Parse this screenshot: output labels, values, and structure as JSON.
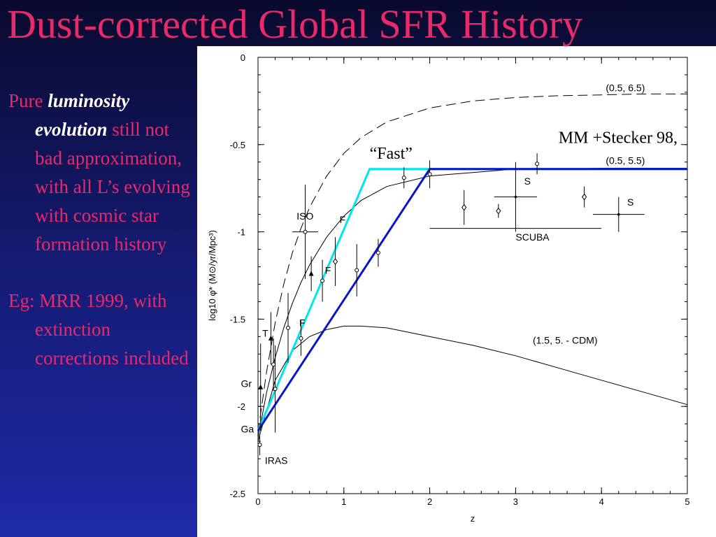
{
  "slide": {
    "title": "Dust-corrected Global SFR History",
    "bullets": [
      {
        "pre": "Pure ",
        "emph": "luminosity evolution",
        "post": " still not bad approximation, with all L’s evolving with cosmic star formation history"
      },
      {
        "pre": "Eg: MRR 1999, with extinction corrections included",
        "emph": "",
        "post": ""
      }
    ]
  },
  "colors": {
    "title": "#e8296a",
    "fast_model": "#00e5ee",
    "slow_model": "#0a14c8",
    "annotation": "#1414c8"
  },
  "chart_data": {
    "type": "line",
    "xlabel": "z",
    "ylabel": "log10 φ̇* (M⊙/yr/Mpc³)",
    "xlim": [
      0,
      5
    ],
    "ylim": [
      -2.5,
      0
    ],
    "xticks": [
      "0",
      "1",
      "2",
      "3",
      "4",
      "5"
    ],
    "yticks": [
      "0",
      "-0.5",
      "-1",
      "-1.5",
      "-2",
      "-2.5"
    ],
    "series": [
      {
        "name": "(0.5, 6.5)",
        "style": "dashed",
        "x": [
          0,
          0.1,
          0.2,
          0.3,
          0.4,
          0.5,
          0.6,
          0.8,
          1.0,
          1.2,
          1.5,
          2.0,
          2.5,
          3.0,
          3.5,
          4.0,
          4.5,
          5.0
        ],
        "y": [
          -2.15,
          -1.8,
          -1.52,
          -1.3,
          -1.12,
          -0.98,
          -0.86,
          -0.68,
          -0.55,
          -0.46,
          -0.37,
          -0.29,
          -0.25,
          -0.23,
          -0.22,
          -0.215,
          -0.21,
          -0.21
        ]
      },
      {
        "name": "(0.5, 5.5)",
        "style": "solid",
        "x": [
          0,
          0.1,
          0.2,
          0.3,
          0.4,
          0.5,
          0.6,
          0.8,
          1.0,
          1.2,
          1.5,
          2.0,
          2.5,
          3.0,
          3.5,
          4.0,
          4.5,
          5.0
        ],
        "y": [
          -2.18,
          -1.92,
          -1.72,
          -1.55,
          -1.41,
          -1.29,
          -1.19,
          -1.03,
          -0.91,
          -0.82,
          -0.74,
          -0.68,
          -0.66,
          -0.64,
          -0.64,
          -0.635,
          -0.635,
          -0.635
        ]
      },
      {
        "name": "(1.5, 5. - CDM)",
        "style": "solid",
        "x": [
          0,
          0.2,
          0.4,
          0.6,
          0.8,
          1.0,
          1.2,
          1.5,
          2.0,
          2.5,
          3.0,
          3.5,
          4.0,
          4.5,
          5.0
        ],
        "y": [
          -2.2,
          -1.85,
          -1.68,
          -1.6,
          -1.56,
          -1.54,
          -1.54,
          -1.55,
          -1.6,
          -1.65,
          -1.71,
          -1.78,
          -1.85,
          -1.92,
          -1.99
        ]
      },
      {
        "name": "“Fast”",
        "style": "solid",
        "color": "#00e5ee",
        "x": [
          0,
          1.3,
          5.0
        ],
        "y": [
          -2.14,
          -0.64,
          -0.64
        ]
      },
      {
        "name": "MM +Stecker 98,",
        "style": "solid",
        "color": "#0a14c8",
        "x": [
          0,
          2.0,
          5.0
        ],
        "y": [
          -2.14,
          -0.64,
          -0.64
        ]
      }
    ],
    "points": [
      {
        "x": 0.02,
        "y": -2.22,
        "marker": "circle",
        "yerr": 0.06
      },
      {
        "x": 0.03,
        "y": -1.89,
        "marker": "triangle",
        "yerr": 0.25
      },
      {
        "x": 0.15,
        "y": -1.61,
        "marker": "triangle",
        "yerr": 0.15
      },
      {
        "x": 0.18,
        "y": -1.76,
        "marker": "circle",
        "yerr": 0.15
      },
      {
        "x": 0.2,
        "y": -1.9,
        "marker": "circle",
        "yerr": 0.25
      },
      {
        "x": 0.35,
        "y": -1.55,
        "marker": "circle",
        "yerr": 0.2
      },
      {
        "x": 0.5,
        "y": -1.61,
        "marker": "circle",
        "yerr": 0.1
      },
      {
        "x": 0.55,
        "y": -1.0,
        "marker": "circle",
        "xerr": 0.15,
        "yerr": 0.27
      },
      {
        "x": 0.62,
        "y": -1.24,
        "marker": "triangle",
        "yerr": 0.1
      },
      {
        "x": 0.75,
        "y": -1.28,
        "marker": "circle",
        "yerr": 0.12
      },
      {
        "x": 0.9,
        "y": -1.17,
        "marker": "diamond",
        "yerr": 0.14
      },
      {
        "x": 1.15,
        "y": -1.22,
        "marker": "circle",
        "yerr": 0.15
      },
      {
        "x": 1.4,
        "y": -1.12,
        "marker": "circle",
        "yerr": 0.08
      },
      {
        "x": 1.7,
        "y": -0.69,
        "marker": "circle",
        "yerr": 0.06
      },
      {
        "x": 2.0,
        "y": -0.67,
        "marker": "circle",
        "yerr": 0.08
      },
      {
        "x": 2.4,
        "y": -0.86,
        "marker": "diamond",
        "yerr": 0.1
      },
      {
        "x": 2.8,
        "y": -0.88,
        "marker": "diamond",
        "yerr": 0.04
      },
      {
        "x": 3.0,
        "y": -0.8,
        "marker": "cross",
        "xerr": 0.25,
        "yerr": 0.2
      },
      {
        "x": 3.25,
        "y": -0.61,
        "marker": "circle",
        "yerr": 0.06
      },
      {
        "x": 3.8,
        "y": -0.8,
        "marker": "diamond",
        "yerr": 0.06
      },
      {
        "x": 4.2,
        "y": -0.9,
        "marker": "cross",
        "xerr": 0.3,
        "yerr": 0.1
      }
    ],
    "limits": [
      {
        "label": "SCUBA",
        "x": [
          2.0,
          4.0
        ],
        "y": -0.98
      }
    ],
    "annotations": [
      {
        "text": "(0.5, 6.5)",
        "x": 4.05,
        "y": -0.195
      },
      {
        "text": "(0.5, 5.5)",
        "x": 4.05,
        "y": -0.61
      },
      {
        "text": "(1.5, 5. - CDM)",
        "x": 3.2,
        "y": -1.64
      },
      {
        "text": "S",
        "x": 3.1,
        "y": -0.73
      },
      {
        "text": "S",
        "x": 4.3,
        "y": -0.85
      },
      {
        "text": "SCUBA",
        "x": 3.0,
        "y": -1.05
      },
      {
        "text": "ISO",
        "x": 0.45,
        "y": -0.93
      },
      {
        "text": "F",
        "x": 0.95,
        "y": -0.95
      },
      {
        "text": "F",
        "x": 0.78,
        "y": -1.24
      },
      {
        "text": "F",
        "x": 0.48,
        "y": -1.54
      },
      {
        "text": "T",
        "x": 0.05,
        "y": -1.6
      },
      {
        "text": "Gr",
        "x": -0.2,
        "y": -1.89
      },
      {
        "text": "Ga",
        "x": -0.2,
        "y": -2.15
      },
      {
        "text": "IRAS",
        "x": 0.08,
        "y": -2.33
      }
    ],
    "callouts": [
      {
        "text": "“Fast”",
        "x": 1.3,
        "y": -0.58,
        "color": "#00e5ee"
      },
      {
        "text": "MM +Stecker 98,",
        "x": 3.5,
        "y": -0.49,
        "color": "#1414c8"
      }
    ]
  }
}
